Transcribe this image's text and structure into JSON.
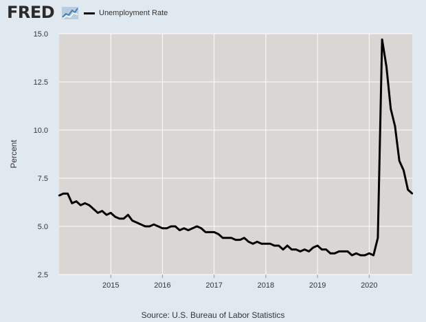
{
  "header": {
    "logo_text": "FRED",
    "logo_icon": "line-graph-icon",
    "legend_label": "Unemployment Rate",
    "legend_color": "#000000"
  },
  "source_text": "Source: U.S. Bureau of Labor Statistics",
  "colors": {
    "page_bg": "#e1e9f0",
    "plot_bg": "#d9d6d3",
    "grid": "#ffffff",
    "line": "#000000"
  },
  "chart_data": {
    "type": "line",
    "title": "",
    "xlabel": "",
    "ylabel": "Percent",
    "ylim": [
      2.5,
      15.0
    ],
    "yticks": [
      "2.5",
      "5.0",
      "7.5",
      "10.0",
      "12.5",
      "15.0"
    ],
    "xticks": [
      "2015",
      "2016",
      "2017",
      "2018",
      "2019",
      "2020"
    ],
    "grid": true,
    "legend_position": "top-left",
    "x_start": "2014-01",
    "x_end": "2020-11",
    "x_frequency": "monthly",
    "series": [
      {
        "name": "Unemployment Rate",
        "color": "#000000",
        "values": [
          6.6,
          6.7,
          6.7,
          6.2,
          6.3,
          6.1,
          6.2,
          6.1,
          5.9,
          5.7,
          5.8,
          5.6,
          5.7,
          5.5,
          5.4,
          5.4,
          5.6,
          5.3,
          5.2,
          5.1,
          5.0,
          5.0,
          5.1,
          5.0,
          4.9,
          4.9,
          5.0,
          5.0,
          4.8,
          4.9,
          4.8,
          4.9,
          5.0,
          4.9,
          4.7,
          4.7,
          4.7,
          4.6,
          4.4,
          4.4,
          4.4,
          4.3,
          4.3,
          4.4,
          4.2,
          4.1,
          4.2,
          4.1,
          4.1,
          4.1,
          4.0,
          4.0,
          3.8,
          4.0,
          3.8,
          3.8,
          3.7,
          3.8,
          3.7,
          3.9,
          4.0,
          3.8,
          3.8,
          3.6,
          3.6,
          3.7,
          3.7,
          3.7,
          3.5,
          3.6,
          3.5,
          3.5,
          3.6,
          3.5,
          4.4,
          14.7,
          13.3,
          11.1,
          10.2,
          8.4,
          7.9,
          6.9,
          6.7
        ]
      }
    ]
  }
}
